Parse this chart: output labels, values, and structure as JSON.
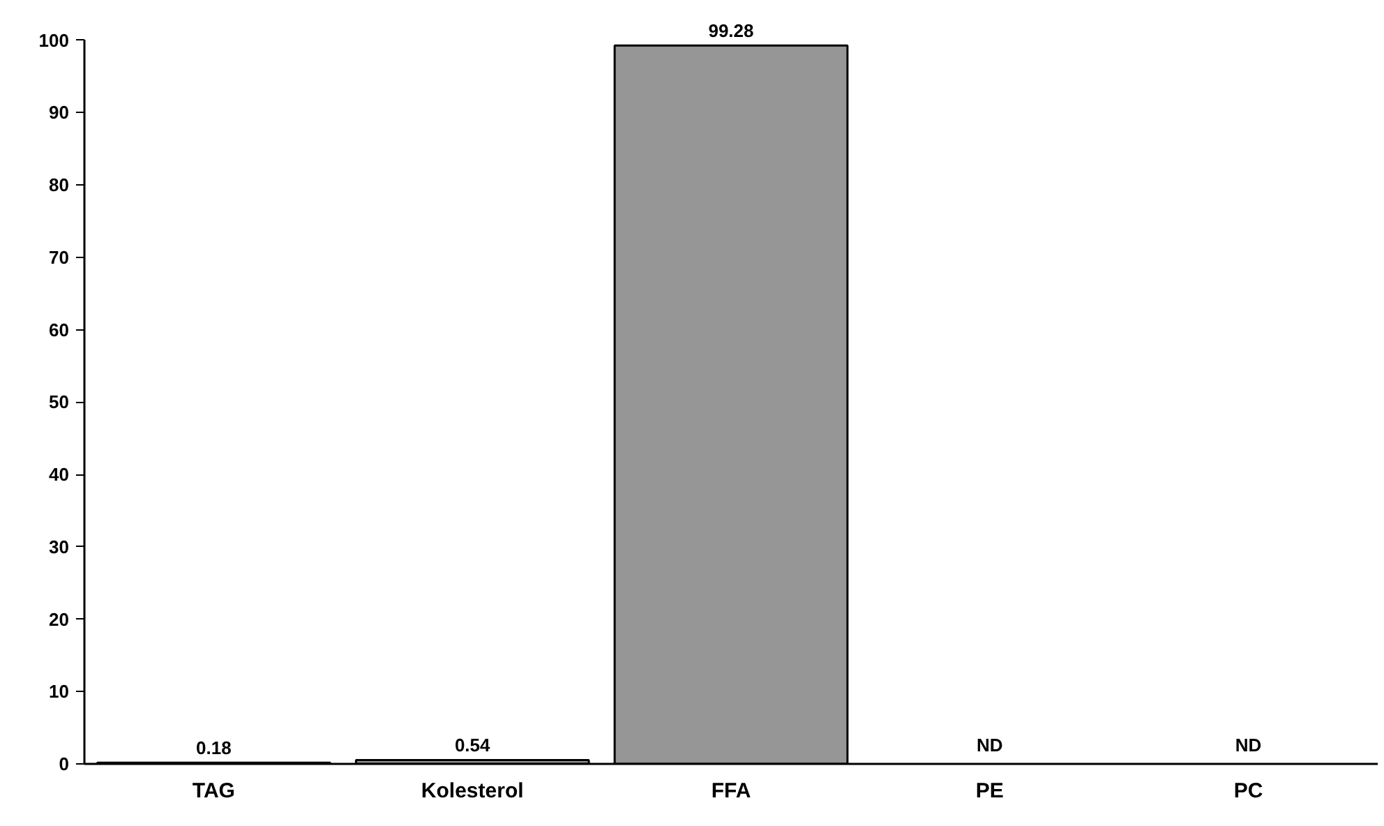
{
  "chart_data": {
    "type": "bar",
    "categories": [
      "TAG",
      "Kolesterol",
      "FFA",
      "PE",
      "PC"
    ],
    "values": [
      0.18,
      0.54,
      99.28,
      null,
      null
    ],
    "value_labels": [
      "0.18",
      "0.54",
      "99.28",
      "ND",
      "ND"
    ],
    "color": "#969696",
    "ylim": [
      0,
      100
    ],
    "yticks": [
      0,
      10,
      20,
      30,
      40,
      50,
      60,
      70,
      80,
      90,
      100
    ],
    "grid": false
  }
}
